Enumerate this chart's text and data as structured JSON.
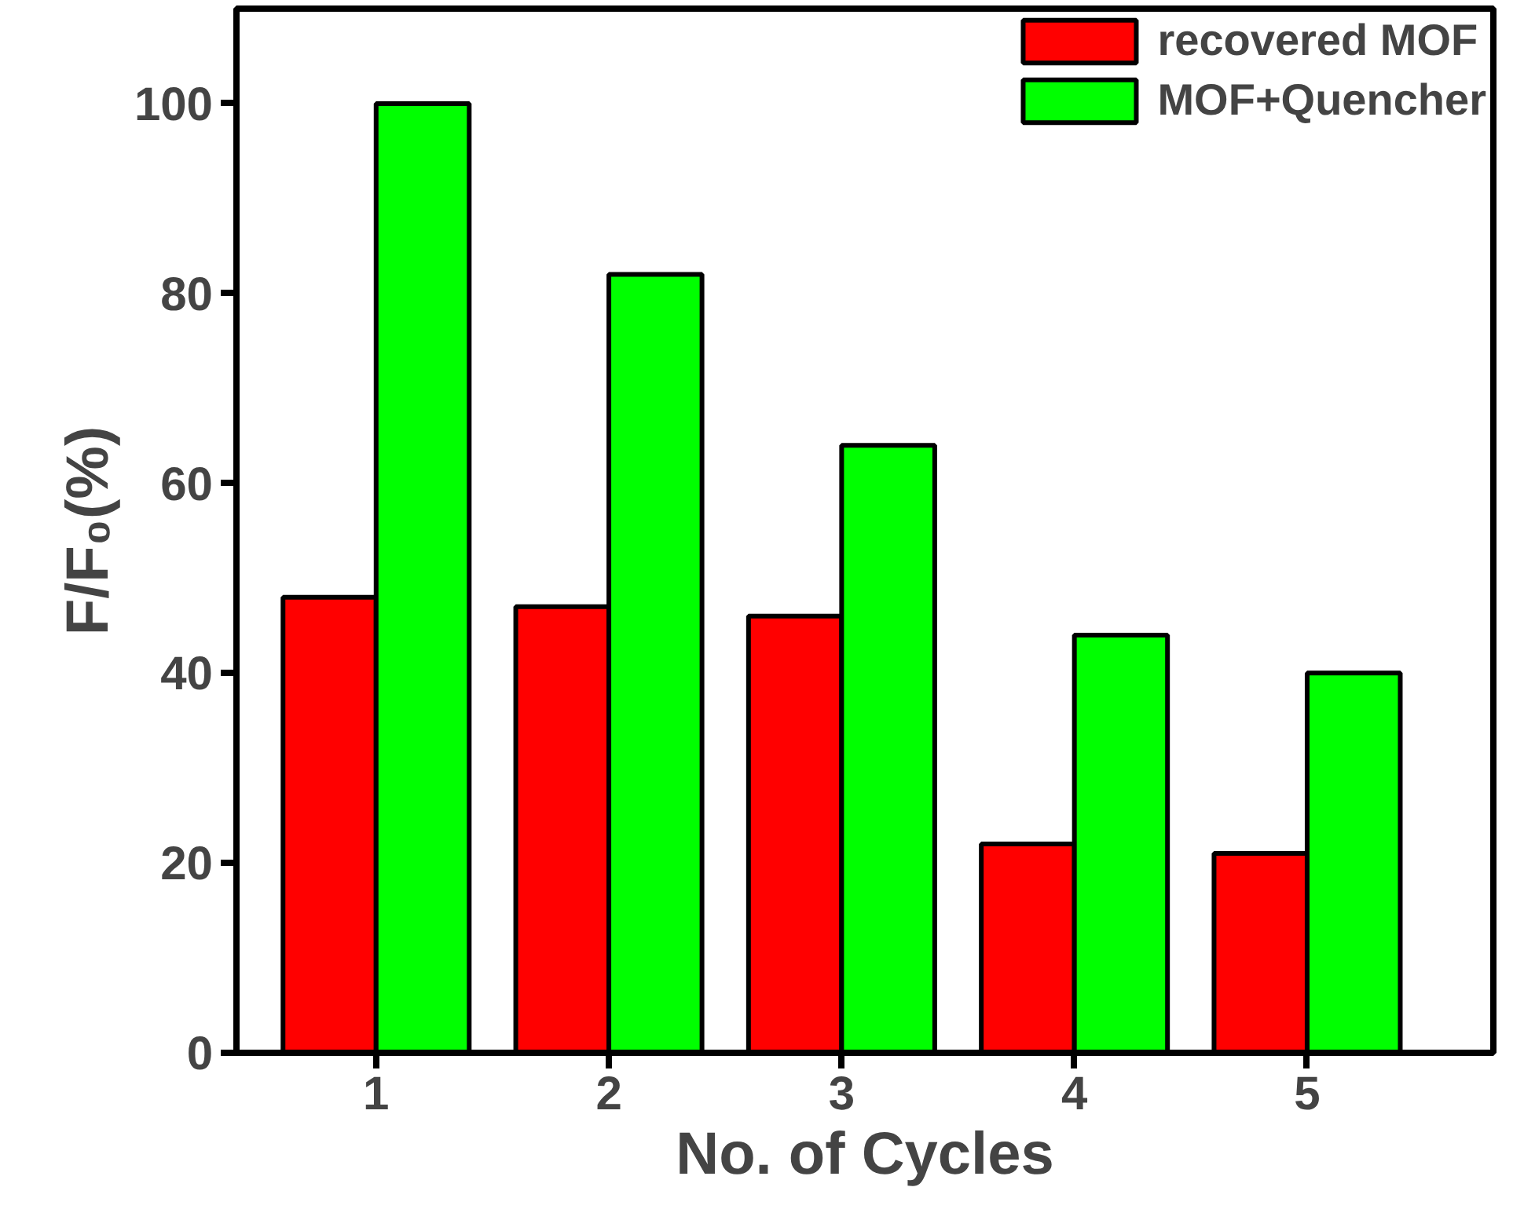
{
  "chart_data": {
    "type": "bar",
    "xlabel": "No. of Cycles",
    "ylabel": "F/F₀(%)",
    "categories": [
      "1",
      "2",
      "3",
      "4",
      "5"
    ],
    "series": [
      {
        "name": "recovered MOF",
        "color": "#ff0000",
        "values": [
          48,
          47,
          46,
          22,
          21
        ]
      },
      {
        "name": "MOF+Quencher",
        "color": "#00ff00",
        "values": [
          100,
          82,
          64,
          44,
          40
        ]
      }
    ],
    "ylim": [
      0,
      110
    ],
    "yticks": [
      0,
      20,
      40,
      60,
      80,
      100
    ],
    "grid": false,
    "legend": "top right"
  }
}
